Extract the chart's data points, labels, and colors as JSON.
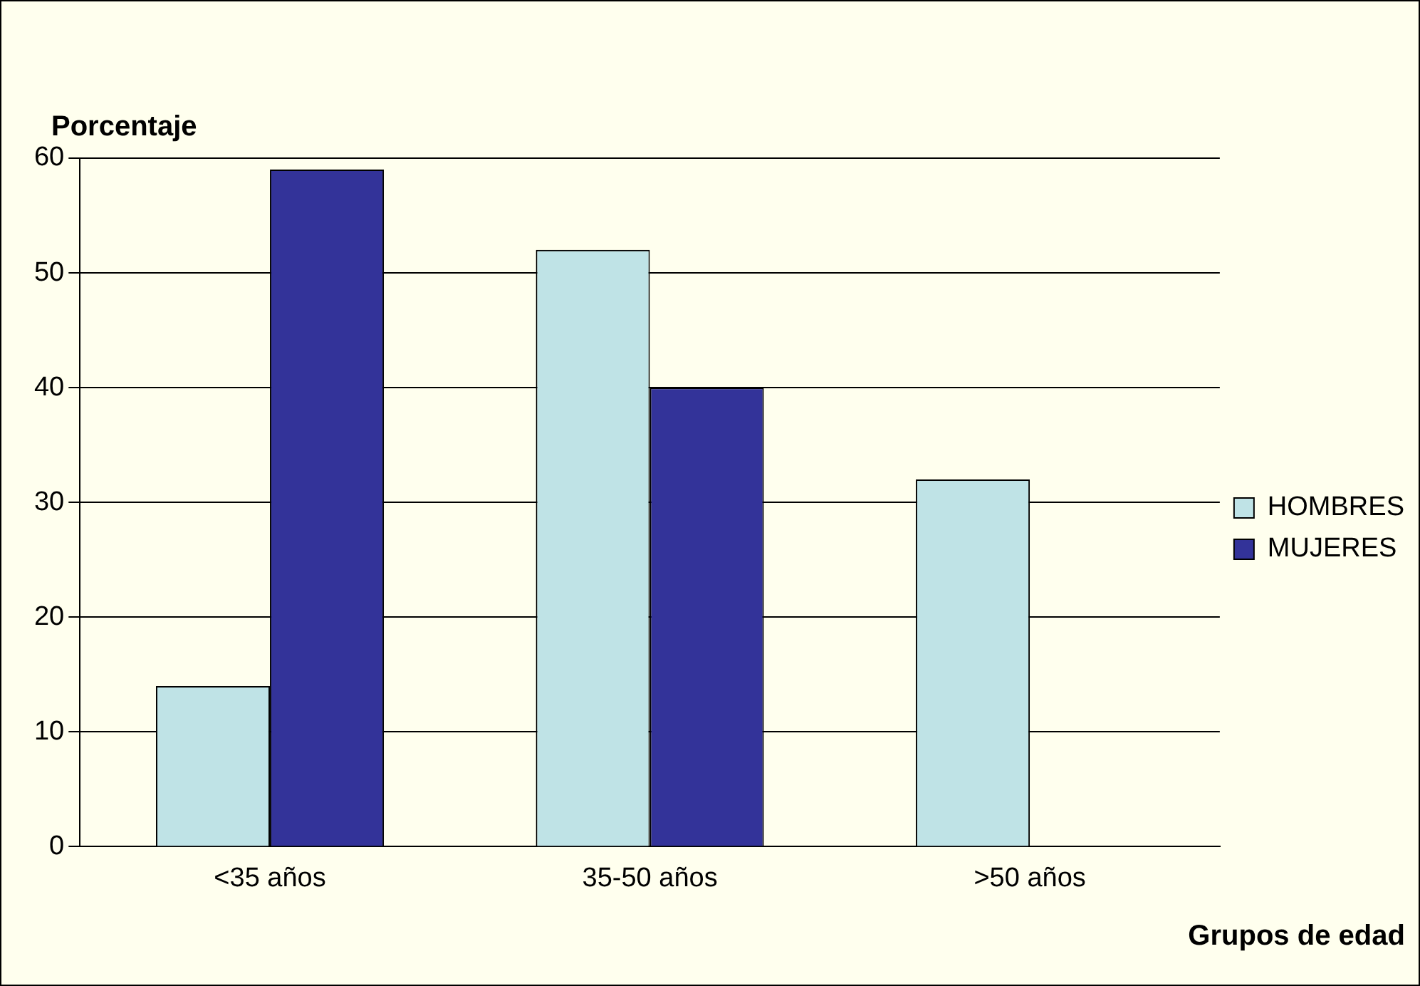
{
  "chart_data": {
    "type": "bar",
    "xlabel": "Grupos de edad",
    "ylabel": "Porcentaje",
    "categories": [
      "<35 años",
      "35-50 años",
      ">50 años"
    ],
    "series": [
      {
        "name": "HOMBRES",
        "color": "#bfe3e6",
        "values": [
          14,
          52,
          32
        ]
      },
      {
        "name": "MUJERES",
        "color": "#333399",
        "values": [
          59,
          40,
          0
        ]
      }
    ],
    "ylim": [
      0,
      60
    ],
    "yticks": [
      0,
      10,
      20,
      30,
      40,
      50,
      60
    ],
    "grid": "y",
    "legend": "right"
  }
}
